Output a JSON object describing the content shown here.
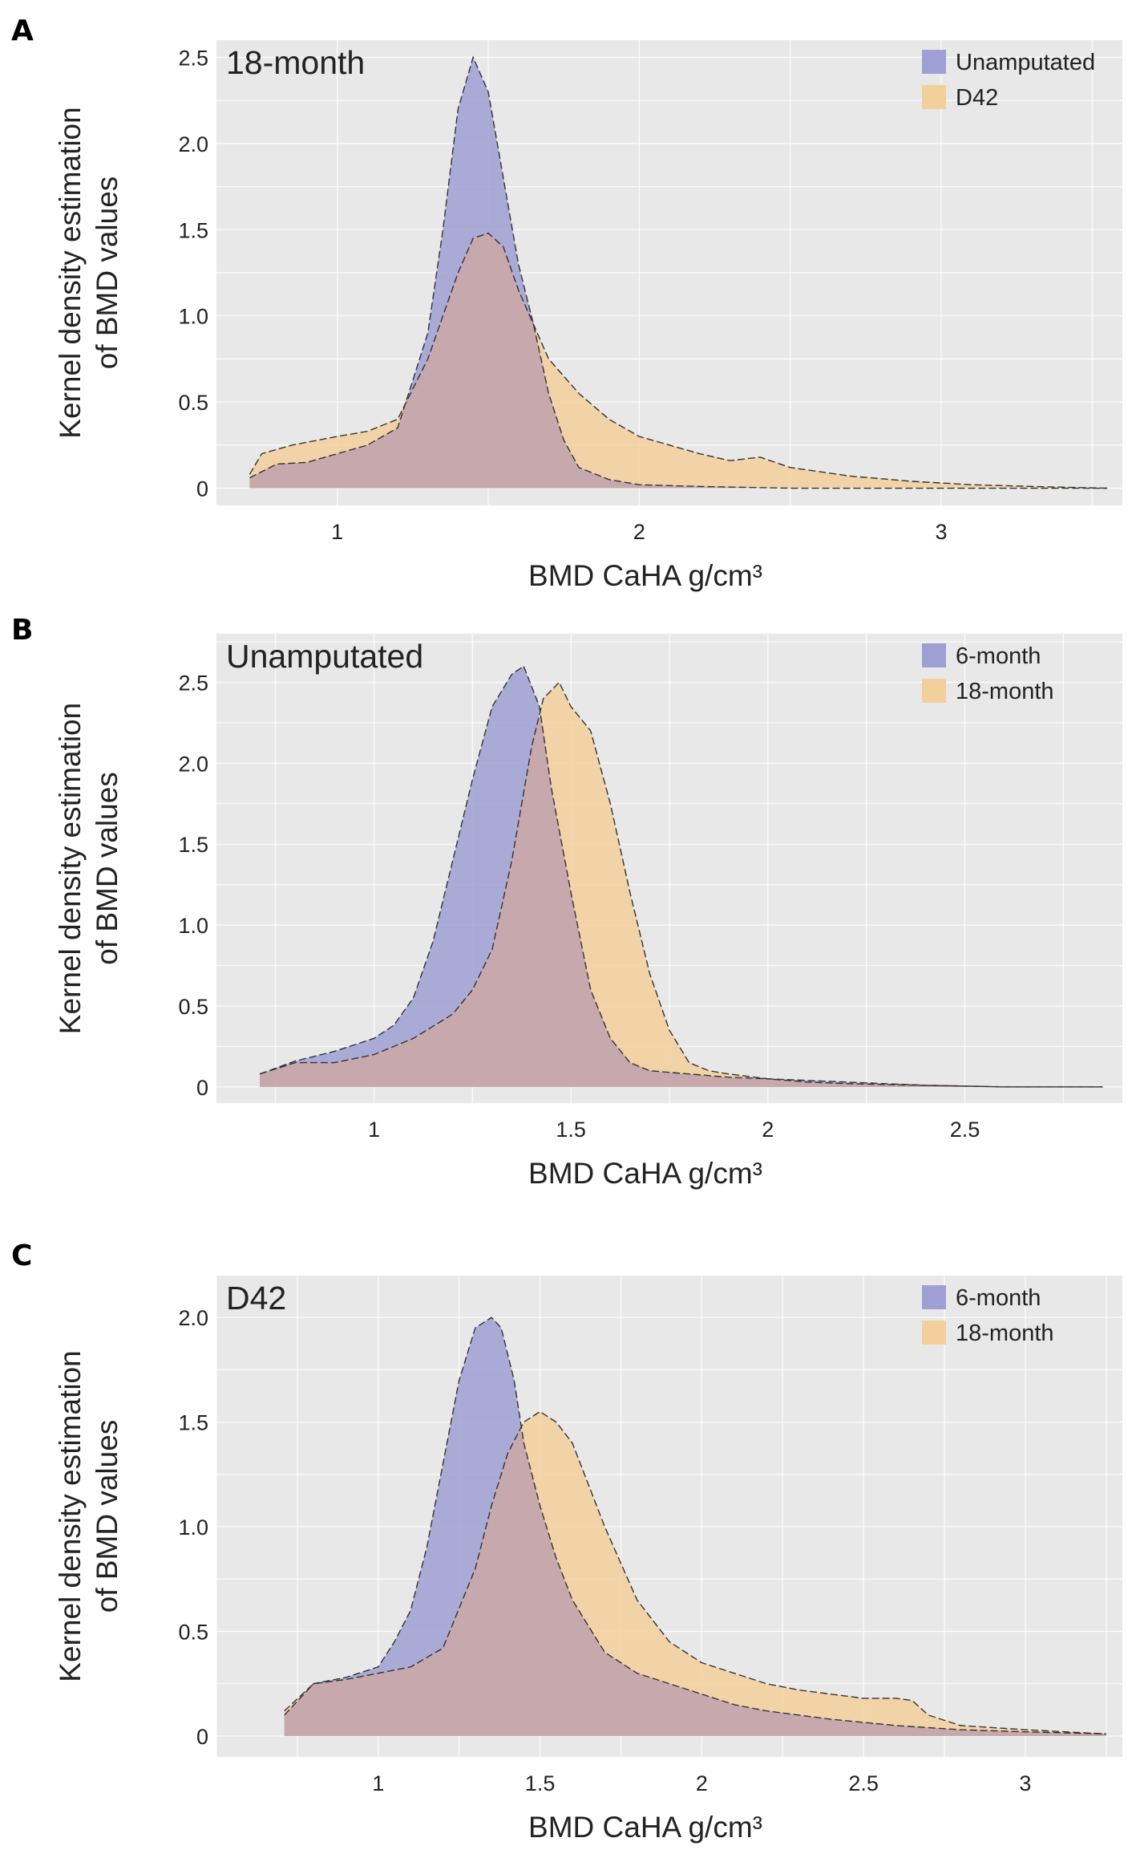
{
  "figure": {
    "background": "#ffffff",
    "plot_background": "#e8e8e8",
    "grid_color": "#ffffff"
  },
  "series_colors": {
    "purple": "#9f9fd4",
    "orange": "#f2cf9b",
    "overlap": "#c6a8ad"
  },
  "chart_data": [
    {
      "panel": "A",
      "type": "area",
      "title": "18-month",
      "xlabel": "BMD CaHA g/cm³",
      "ylabel": "Kernel density estimation of BMD values",
      "ylabel_lines": [
        "Kernel density estimation",
        "of BMD values"
      ],
      "xlim": [
        0.6,
        3.6
      ],
      "ylim": [
        -0.1,
        2.6
      ],
      "xticks": [
        1,
        2,
        3
      ],
      "xtick_labels": [
        "1",
        "2",
        "3"
      ],
      "yticks": [
        0,
        0.5,
        1.0,
        1.5,
        2.0,
        2.5
      ],
      "ytick_labels": [
        "0",
        "0.5",
        "1.0",
        "1.5",
        "2.0",
        "2.5"
      ],
      "series": [
        {
          "name": "Unamputated",
          "color": "purple",
          "x": [
            0.71,
            0.8,
            0.9,
            1.0,
            1.1,
            1.2,
            1.3,
            1.35,
            1.4,
            1.45,
            1.5,
            1.55,
            1.6,
            1.65,
            1.7,
            1.75,
            1.8,
            1.9,
            2.0,
            2.2,
            2.5,
            3.0,
            3.55
          ],
          "y": [
            0.06,
            0.14,
            0.15,
            0.2,
            0.25,
            0.35,
            0.9,
            1.5,
            2.2,
            2.5,
            2.3,
            1.8,
            1.3,
            0.95,
            0.55,
            0.28,
            0.12,
            0.05,
            0.02,
            0.01,
            0.0,
            0.0,
            0.0
          ]
        },
        {
          "name": "D42",
          "color": "orange",
          "x": [
            0.71,
            0.75,
            0.85,
            1.0,
            1.1,
            1.2,
            1.3,
            1.4,
            1.45,
            1.5,
            1.55,
            1.6,
            1.7,
            1.8,
            1.9,
            2.0,
            2.1,
            2.2,
            2.3,
            2.4,
            2.5,
            2.7,
            2.9,
            3.1,
            3.3,
            3.55
          ],
          "y": [
            0.08,
            0.2,
            0.25,
            0.3,
            0.33,
            0.4,
            0.75,
            1.25,
            1.45,
            1.48,
            1.4,
            1.15,
            0.75,
            0.55,
            0.4,
            0.3,
            0.25,
            0.2,
            0.16,
            0.18,
            0.12,
            0.07,
            0.04,
            0.02,
            0.01,
            0.0
          ]
        }
      ],
      "legend": {
        "position": "top-right",
        "entries": [
          "Unamputated",
          "D42"
        ]
      }
    },
    {
      "panel": "B",
      "type": "area",
      "title": "Unamputated",
      "xlabel": "BMD CaHA g/cm³",
      "ylabel": "Kernel density estimation of BMD values",
      "ylabel_lines": [
        "Kernel density estimation",
        "of BMD values"
      ],
      "xlim": [
        0.6,
        2.9
      ],
      "ylim": [
        -0.1,
        2.8
      ],
      "xticks": [
        1,
        1.5,
        2,
        2.5
      ],
      "xtick_labels": [
        "1",
        "1.5",
        "2",
        "2.5"
      ],
      "yticks": [
        0,
        0.5,
        1.0,
        1.5,
        2.0,
        2.5
      ],
      "ytick_labels": [
        "0",
        "0.5",
        "1.0",
        "1.5",
        "2.0",
        "2.5"
      ],
      "series": [
        {
          "name": "6-month",
          "color": "purple",
          "x": [
            0.71,
            0.8,
            0.9,
            1.0,
            1.05,
            1.1,
            1.15,
            1.2,
            1.25,
            1.3,
            1.35,
            1.38,
            1.42,
            1.45,
            1.5,
            1.55,
            1.6,
            1.65,
            1.7,
            1.8,
            1.9,
            2.0,
            2.1,
            2.2,
            2.4,
            2.6,
            2.85
          ],
          "y": [
            0.08,
            0.16,
            0.22,
            0.3,
            0.38,
            0.55,
            0.9,
            1.4,
            1.9,
            2.35,
            2.55,
            2.6,
            2.35,
            1.85,
            1.2,
            0.6,
            0.3,
            0.15,
            0.1,
            0.08,
            0.06,
            0.05,
            0.04,
            0.03,
            0.01,
            0.0,
            0.0
          ]
        },
        {
          "name": "18-month",
          "color": "orange",
          "x": [
            0.71,
            0.8,
            0.9,
            1.0,
            1.1,
            1.2,
            1.25,
            1.3,
            1.35,
            1.4,
            1.43,
            1.47,
            1.5,
            1.55,
            1.6,
            1.65,
            1.7,
            1.75,
            1.8,
            1.85,
            1.9,
            2.0,
            2.1,
            2.2,
            2.4,
            2.6,
            2.85
          ],
          "y": [
            0.08,
            0.15,
            0.15,
            0.2,
            0.3,
            0.45,
            0.6,
            0.85,
            1.4,
            2.1,
            2.4,
            2.5,
            2.35,
            2.2,
            1.75,
            1.2,
            0.7,
            0.35,
            0.15,
            0.1,
            0.08,
            0.05,
            0.03,
            0.02,
            0.01,
            0.0,
            0.0
          ]
        }
      ],
      "legend": {
        "position": "top-right",
        "entries": [
          "6-month",
          "18-month"
        ]
      }
    },
    {
      "panel": "C",
      "type": "area",
      "title": "D42",
      "xlabel": "BMD CaHA g/cm³",
      "ylabel": "Kernel density estimation of BMD values",
      "ylabel_lines": [
        "Kernel density estimation",
        "of BMD values"
      ],
      "xlim": [
        0.5,
        3.3
      ],
      "ylim": [
        -0.1,
        2.2
      ],
      "xticks": [
        1,
        1.5,
        2,
        2.5,
        3
      ],
      "xtick_labels": [
        "1",
        "1.5",
        "2",
        "2.5",
        "3"
      ],
      "yticks": [
        0,
        0.5,
        1.0,
        1.5,
        2.0
      ],
      "ytick_labels": [
        "0",
        "0.5",
        "1.0",
        "1.5",
        "2.0"
      ],
      "series": [
        {
          "name": "6-month",
          "color": "purple",
          "x": [
            0.71,
            0.8,
            0.9,
            1.0,
            1.05,
            1.1,
            1.15,
            1.2,
            1.25,
            1.3,
            1.35,
            1.38,
            1.42,
            1.45,
            1.5,
            1.55,
            1.6,
            1.7,
            1.8,
            1.9,
            2.0,
            2.1,
            2.2,
            2.4,
            2.6,
            2.8,
            3.0,
            3.25
          ],
          "y": [
            0.1,
            0.25,
            0.28,
            0.33,
            0.45,
            0.6,
            0.9,
            1.3,
            1.7,
            1.95,
            2.0,
            1.95,
            1.7,
            1.4,
            1.1,
            0.85,
            0.65,
            0.4,
            0.3,
            0.25,
            0.2,
            0.15,
            0.12,
            0.08,
            0.05,
            0.03,
            0.02,
            0.01
          ]
        },
        {
          "name": "18-month",
          "color": "orange",
          "x": [
            0.71,
            0.8,
            0.9,
            1.0,
            1.1,
            1.2,
            1.3,
            1.35,
            1.4,
            1.45,
            1.5,
            1.55,
            1.6,
            1.7,
            1.8,
            1.9,
            2.0,
            2.1,
            2.2,
            2.3,
            2.5,
            2.6,
            2.65,
            2.7,
            2.8,
            3.0,
            3.25
          ],
          "y": [
            0.12,
            0.25,
            0.27,
            0.3,
            0.33,
            0.42,
            0.8,
            1.1,
            1.35,
            1.5,
            1.55,
            1.5,
            1.4,
            1.0,
            0.65,
            0.45,
            0.35,
            0.3,
            0.25,
            0.22,
            0.18,
            0.18,
            0.17,
            0.1,
            0.05,
            0.03,
            0.01
          ]
        }
      ],
      "legend": {
        "position": "top-right",
        "entries": [
          "6-month",
          "18-month"
        ]
      }
    }
  ]
}
